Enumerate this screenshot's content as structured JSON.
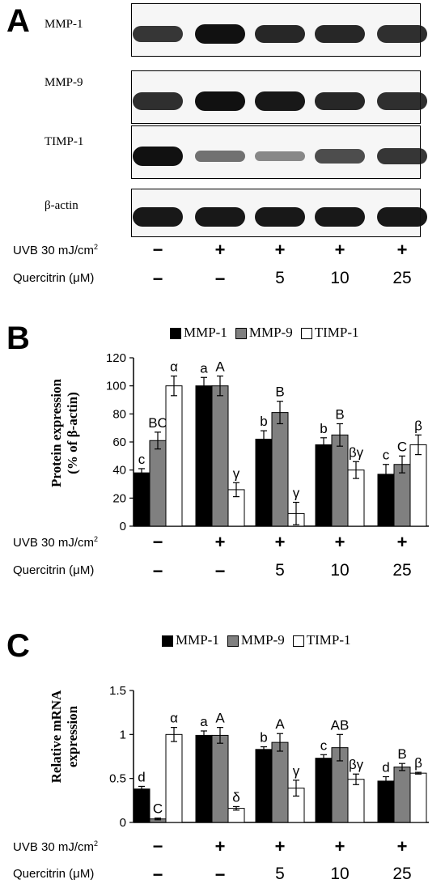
{
  "panel_a": {
    "letter": "A",
    "blots": [
      {
        "label": "MMP-1",
        "intensities": [
          0.75,
          1.0,
          0.85,
          0.85,
          0.8
        ]
      },
      {
        "label": "MMP-9",
        "intensities": [
          0.8,
          1.0,
          0.95,
          0.85,
          0.8
        ]
      },
      {
        "label": "TIMP-1",
        "intensities": [
          1.0,
          0.35,
          0.2,
          0.6,
          0.75
        ]
      },
      {
        "label": "β-actin",
        "intensities": [
          0.95,
          0.95,
          0.95,
          0.95,
          0.95
        ]
      }
    ],
    "conditions": {
      "uvb_label": "UVB 30 mJ/cm",
      "uvb_sup": "2",
      "uvb": [
        "−",
        "+",
        "+",
        "+",
        "+"
      ],
      "quercitrin_label": "Quercitrin (μM)",
      "quercitrin": [
        "−",
        "−",
        "5",
        "10",
        "25"
      ]
    }
  },
  "chart_data": [
    {
      "panel": "B",
      "type": "bar",
      "ylabel_line1": "Protein expression",
      "ylabel_line2": "(% of β-actin)",
      "ylim": [
        0,
        120
      ],
      "yticks": [
        "0",
        "20",
        "40",
        "60",
        "80",
        "100",
        "120"
      ],
      "tick_values": [
        0,
        20,
        40,
        60,
        80,
        100,
        120
      ],
      "group_count": 5,
      "series": [
        {
          "name": "MMP-1",
          "values": [
            38,
            100,
            62,
            58,
            37
          ],
          "errors": [
            3,
            6,
            6,
            5,
            7
          ],
          "letters": [
            "c",
            "a",
            "b",
            "b",
            "c"
          ]
        },
        {
          "name": "MMP-9",
          "values": [
            61,
            100,
            81,
            65,
            44
          ],
          "errors": [
            6,
            7,
            8,
            8,
            6
          ],
          "letters": [
            "BC",
            "A",
            "B",
            "B",
            "C"
          ]
        },
        {
          "name": "TIMP-1",
          "values": [
            100,
            26,
            9,
            40,
            58
          ],
          "errors": [
            7,
            5,
            8,
            6,
            7
          ],
          "letters": [
            "α",
            "γ",
            "γ",
            "βγ",
            "β"
          ]
        }
      ],
      "conditions": {
        "uvb_label": "UVB 30 mJ/cm",
        "uvb_sup": "2",
        "uvb": [
          "−",
          "+",
          "+",
          "+",
          "+"
        ],
        "quercitrin_label": "Quercitrin (μM)",
        "quercitrin": [
          "−",
          "−",
          "5",
          "10",
          "25"
        ]
      }
    },
    {
      "panel": "C",
      "type": "bar",
      "ylabel_line1": "Relative mRNA",
      "ylabel_line2": "expression",
      "ylim": [
        0,
        1.5
      ],
      "yticks": [
        "0",
        "0.5",
        "1",
        "1.5"
      ],
      "tick_values": [
        0,
        0.5,
        1,
        1.5
      ],
      "group_count": 5,
      "series": [
        {
          "name": "MMP-1",
          "values": [
            0.38,
            0.99,
            0.83,
            0.73,
            0.47
          ],
          "errors": [
            0.03,
            0.05,
            0.03,
            0.04,
            0.05
          ],
          "letters": [
            "d",
            "a",
            "b",
            "c",
            "d"
          ]
        },
        {
          "name": "MMP-9",
          "values": [
            0.04,
            0.99,
            0.91,
            0.85,
            0.63
          ],
          "errors": [
            0.01,
            0.09,
            0.1,
            0.15,
            0.04
          ],
          "letters": [
            "C",
            "A",
            "A",
            "AB",
            "B"
          ]
        },
        {
          "name": "TIMP-1",
          "values": [
            1.0,
            0.16,
            0.39,
            0.49,
            0.56
          ],
          "errors": [
            0.08,
            0.02,
            0.09,
            0.06,
            0.01
          ],
          "letters": [
            "α",
            "δ",
            "γ",
            "βγ",
            "β"
          ]
        }
      ],
      "conditions": {
        "uvb_label": "UVB 30 mJ/cm",
        "uvb_sup": "2",
        "uvb": [
          "−",
          "+",
          "+",
          "+",
          "+"
        ],
        "quercitrin_label": "Quercitrin (μM)",
        "quercitrin": [
          "−",
          "−",
          "5",
          "10",
          "25"
        ]
      }
    }
  ],
  "colors": {
    "mmp1": "#000000",
    "mmp9": "#808080",
    "timp1": "#ffffff"
  }
}
